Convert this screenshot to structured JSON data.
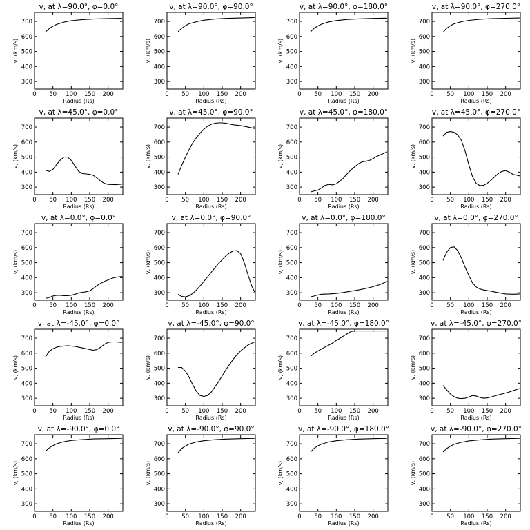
{
  "chart_data": [
    {
      "type": "line",
      "title": "v, at λ=90.0°, φ=0.0°",
      "xlabel": "Radius (Rs)",
      "ylabel": "v, (km/s)",
      "xlim": [
        0,
        240
      ],
      "ylim": [
        250,
        760
      ],
      "x": [
        30,
        40,
        50,
        60,
        80,
        100,
        130,
        160,
        200,
        238
      ],
      "values": [
        630,
        652,
        668,
        680,
        695,
        705,
        712,
        716,
        719,
        721
      ]
    },
    {
      "type": "line",
      "title": "v, at λ=90.0°, φ=90.0°",
      "xlabel": "Radius (Rs)",
      "ylabel": "v, (km/s)",
      "xlim": [
        0,
        240
      ],
      "ylim": [
        250,
        760
      ],
      "x": [
        30,
        40,
        50,
        60,
        80,
        100,
        130,
        160,
        200,
        238
      ],
      "values": [
        632,
        655,
        672,
        684,
        698,
        708,
        716,
        720,
        723,
        726
      ]
    },
    {
      "type": "line",
      "title": "v, at λ=90.0°, φ=180.0°",
      "xlabel": "Radius (Rs)",
      "ylabel": "v, (km/s)",
      "xlim": [
        0,
        240
      ],
      "ylim": [
        250,
        760
      ],
      "x": [
        30,
        40,
        50,
        60,
        80,
        100,
        130,
        160,
        200,
        238
      ],
      "values": [
        630,
        655,
        670,
        682,
        697,
        706,
        713,
        717,
        720,
        722
      ]
    },
    {
      "type": "line",
      "title": "v, at λ=90.0°, φ=270.0°",
      "xlabel": "Radius (Rs)",
      "ylabel": "v, (km/s)",
      "xlim": [
        0,
        240
      ],
      "ylim": [
        250,
        760
      ],
      "x": [
        30,
        40,
        50,
        60,
        80,
        100,
        130,
        160,
        200,
        238
      ],
      "values": [
        628,
        655,
        672,
        684,
        698,
        707,
        714,
        718,
        721,
        723
      ]
    },
    {
      "type": "line",
      "title": "v, at λ=45.0°, φ=0.0°",
      "xlabel": "Radius (Rs)",
      "ylabel": "v, (km/s)",
      "xlim": [
        0,
        240
      ],
      "ylim": [
        250,
        760
      ],
      "x": [
        30,
        40,
        50,
        60,
        70,
        80,
        90,
        100,
        110,
        120,
        130,
        140,
        150,
        160,
        170,
        180,
        190,
        200,
        220,
        238
      ],
      "values": [
        412,
        405,
        418,
        450,
        480,
        500,
        500,
        478,
        440,
        405,
        390,
        388,
        385,
        378,
        360,
        340,
        325,
        318,
        316,
        320
      ]
    },
    {
      "type": "line",
      "title": "v, at λ=45.0°, φ=90.0°",
      "xlabel": "Radius (Rs)",
      "ylabel": "v, (km/s)",
      "xlim": [
        0,
        240
      ],
      "ylim": [
        250,
        760
      ],
      "x": [
        30,
        40,
        50,
        60,
        70,
        80,
        90,
        100,
        110,
        120,
        130,
        140,
        150,
        160,
        170,
        180,
        200,
        220,
        238
      ],
      "values": [
        385,
        445,
        500,
        550,
        595,
        630,
        660,
        685,
        705,
        718,
        725,
        728,
        728,
        725,
        720,
        715,
        710,
        700,
        690
      ]
    },
    {
      "type": "line",
      "title": "v, at λ=45.0°, φ=180.0°",
      "xlabel": "Radius (Rs)",
      "ylabel": "v, (km/s)",
      "xlim": [
        0,
        240
      ],
      "ylim": [
        250,
        760
      ],
      "x": [
        30,
        40,
        50,
        60,
        70,
        80,
        90,
        100,
        110,
        120,
        130,
        140,
        150,
        160,
        170,
        180,
        190,
        200,
        210,
        220,
        238
      ],
      "values": [
        268,
        275,
        280,
        295,
        312,
        318,
        315,
        322,
        340,
        362,
        390,
        415,
        435,
        455,
        468,
        472,
        478,
        490,
        505,
        515,
        535
      ]
    },
    {
      "type": "line",
      "title": "v, at λ=45.0°, φ=270.0°",
      "xlabel": "Radius (Rs)",
      "ylabel": "v, (km/s)",
      "xlim": [
        0,
        240
      ],
      "ylim": [
        250,
        760
      ],
      "x": [
        30,
        40,
        50,
        60,
        70,
        80,
        90,
        100,
        110,
        120,
        130,
        140,
        150,
        160,
        170,
        180,
        190,
        200,
        210,
        220,
        238
      ],
      "values": [
        640,
        665,
        670,
        665,
        648,
        610,
        540,
        450,
        370,
        325,
        310,
        312,
        325,
        345,
        368,
        390,
        405,
        410,
        400,
        385,
        375
      ]
    },
    {
      "type": "line",
      "title": "v, at λ=0.0°, φ=0.0°",
      "xlabel": "Radius (Rs)",
      "ylabel": "v, (km/s)",
      "xlim": [
        0,
        240
      ],
      "ylim": [
        250,
        760
      ],
      "x": [
        30,
        40,
        50,
        60,
        70,
        80,
        90,
        100,
        110,
        120,
        130,
        140,
        150,
        160,
        170,
        180,
        190,
        200,
        210,
        220,
        238
      ],
      "values": [
        262,
        268,
        278,
        282,
        282,
        280,
        280,
        283,
        290,
        298,
        303,
        306,
        312,
        328,
        348,
        362,
        375,
        385,
        395,
        402,
        408
      ]
    },
    {
      "type": "line",
      "title": "v, at λ=0.0°, φ=90.0°",
      "xlabel": "Radius (Rs)",
      "ylabel": "v, (km/s)",
      "xlim": [
        0,
        240
      ],
      "ylim": [
        250,
        760
      ],
      "x": [
        30,
        40,
        50,
        60,
        70,
        80,
        90,
        100,
        110,
        120,
        130,
        140,
        150,
        160,
        170,
        180,
        190,
        200,
        210,
        220,
        230,
        238
      ],
      "values": [
        290,
        275,
        272,
        280,
        295,
        318,
        345,
        375,
        405,
        435,
        465,
        495,
        520,
        545,
        565,
        578,
        580,
        560,
        500,
        420,
        345,
        305
      ]
    },
    {
      "type": "line",
      "title": "v, at λ=0.0°, φ=180.0°",
      "xlabel": "Radius (Rs)",
      "ylabel": "v, (km/s)",
      "xlim": [
        0,
        240
      ],
      "ylim": [
        250,
        760
      ],
      "x": [
        30,
        40,
        50,
        60,
        80,
        100,
        120,
        140,
        160,
        180,
        200,
        220,
        238
      ],
      "values": [
        272,
        278,
        285,
        290,
        292,
        295,
        302,
        310,
        318,
        328,
        340,
        355,
        375
      ]
    },
    {
      "type": "line",
      "title": "v, at λ=0.0°, φ=270.0°",
      "xlabel": "Radius (Rs)",
      "ylabel": "v, (km/s)",
      "xlim": [
        0,
        240
      ],
      "ylim": [
        250,
        760
      ],
      "x": [
        30,
        40,
        50,
        60,
        70,
        80,
        90,
        100,
        110,
        120,
        130,
        140,
        160,
        180,
        200,
        220,
        238
      ],
      "values": [
        515,
        570,
        600,
        605,
        580,
        530,
        470,
        415,
        365,
        338,
        325,
        318,
        310,
        300,
        292,
        290,
        292
      ]
    },
    {
      "type": "line",
      "title": "v, at λ=-45.0°, φ=0.0°",
      "xlabel": "Radius (Rs)",
      "ylabel": "v, (km/s)",
      "xlim": [
        0,
        240
      ],
      "ylim": [
        250,
        760
      ],
      "x": [
        30,
        40,
        50,
        60,
        70,
        80,
        90,
        100,
        110,
        120,
        130,
        140,
        150,
        160,
        170,
        180,
        190,
        200,
        210,
        220,
        238
      ],
      "values": [
        575,
        612,
        630,
        640,
        645,
        648,
        650,
        648,
        645,
        640,
        635,
        630,
        625,
        620,
        625,
        640,
        660,
        672,
        675,
        675,
        672
      ]
    },
    {
      "type": "line",
      "title": "v, at λ=-45.0°, φ=90.0°",
      "xlabel": "Radius (Rs)",
      "ylabel": "v, (km/s)",
      "xlim": [
        0,
        240
      ],
      "ylim": [
        250,
        760
      ],
      "x": [
        30,
        40,
        50,
        60,
        70,
        80,
        90,
        100,
        110,
        120,
        130,
        140,
        150,
        160,
        170,
        180,
        190,
        200,
        210,
        220,
        238
      ],
      "values": [
        505,
        505,
        480,
        440,
        390,
        345,
        318,
        312,
        318,
        340,
        375,
        410,
        450,
        490,
        525,
        560,
        590,
        615,
        635,
        655,
        675
      ]
    },
    {
      "type": "line",
      "title": "v, at λ=-45.0°, φ=180.0°",
      "xlabel": "Radius (Rs)",
      "ylabel": "v, (km/s)",
      "xlim": [
        0,
        240
      ],
      "ylim": [
        250,
        760
      ],
      "x": [
        30,
        40,
        50,
        60,
        70,
        80,
        90,
        100,
        110,
        120,
        130,
        140,
        150,
        160,
        180,
        200,
        220,
        238
      ],
      "values": [
        578,
        600,
        615,
        628,
        642,
        655,
        668,
        685,
        700,
        715,
        730,
        745,
        748,
        748,
        748,
        748,
        748,
        748
      ]
    },
    {
      "type": "line",
      "title": "v, at λ=-45.0°, φ=270.0°",
      "xlabel": "Radius (Rs)",
      "ylabel": "v, (km/s)",
      "xlim": [
        0,
        240
      ],
      "ylim": [
        250,
        760
      ],
      "x": [
        30,
        40,
        50,
        60,
        70,
        80,
        90,
        100,
        110,
        120,
        130,
        140,
        150,
        160,
        170,
        180,
        190,
        200,
        210,
        220,
        238
      ],
      "values": [
        385,
        355,
        328,
        310,
        300,
        298,
        300,
        308,
        318,
        315,
        305,
        300,
        302,
        308,
        315,
        322,
        328,
        335,
        342,
        350,
        365
      ]
    },
    {
      "type": "line",
      "title": "v, at λ=-90.0°, φ=0.0°",
      "xlabel": "Radius (Rs)",
      "ylabel": "v, (km/s)",
      "xlim": [
        0,
        240
      ],
      "ylim": [
        250,
        760
      ],
      "x": [
        30,
        40,
        50,
        60,
        80,
        100,
        130,
        160,
        200,
        238
      ],
      "values": [
        650,
        672,
        688,
        700,
        714,
        722,
        728,
        732,
        734,
        736
      ]
    },
    {
      "type": "line",
      "title": "v, at λ=-90.0°, φ=90.0°",
      "xlabel": "Radius (Rs)",
      "ylabel": "v, (km/s)",
      "xlim": [
        0,
        240
      ],
      "ylim": [
        250,
        760
      ],
      "x": [
        30,
        40,
        50,
        60,
        80,
        100,
        130,
        160,
        200,
        238
      ],
      "values": [
        640,
        668,
        685,
        698,
        712,
        720,
        727,
        731,
        734,
        736
      ]
    },
    {
      "type": "line",
      "title": "v, at λ=-90.0°, φ=180.0°",
      "xlabel": "Radius (Rs)",
      "ylabel": "v, (km/s)",
      "xlim": [
        0,
        240
      ],
      "ylim": [
        250,
        760
      ],
      "x": [
        30,
        40,
        50,
        60,
        80,
        100,
        130,
        160,
        200,
        238
      ],
      "values": [
        645,
        670,
        686,
        698,
        712,
        720,
        727,
        731,
        734,
        736
      ]
    },
    {
      "type": "line",
      "title": "v, at λ=-90.0°, φ=270.0°",
      "xlabel": "Radius (Rs)",
      "ylabel": "v, (km/s)",
      "xlim": [
        0,
        240
      ],
      "ylim": [
        250,
        760
      ],
      "x": [
        30,
        40,
        50,
        60,
        80,
        100,
        130,
        160,
        200,
        238
      ],
      "values": [
        645,
        668,
        684,
        696,
        710,
        719,
        726,
        731,
        734,
        736
      ]
    }
  ],
  "axes": {
    "x_ticks": [
      0,
      50,
      100,
      150,
      200
    ],
    "y_ticks": [
      300,
      400,
      500,
      600,
      700
    ]
  }
}
